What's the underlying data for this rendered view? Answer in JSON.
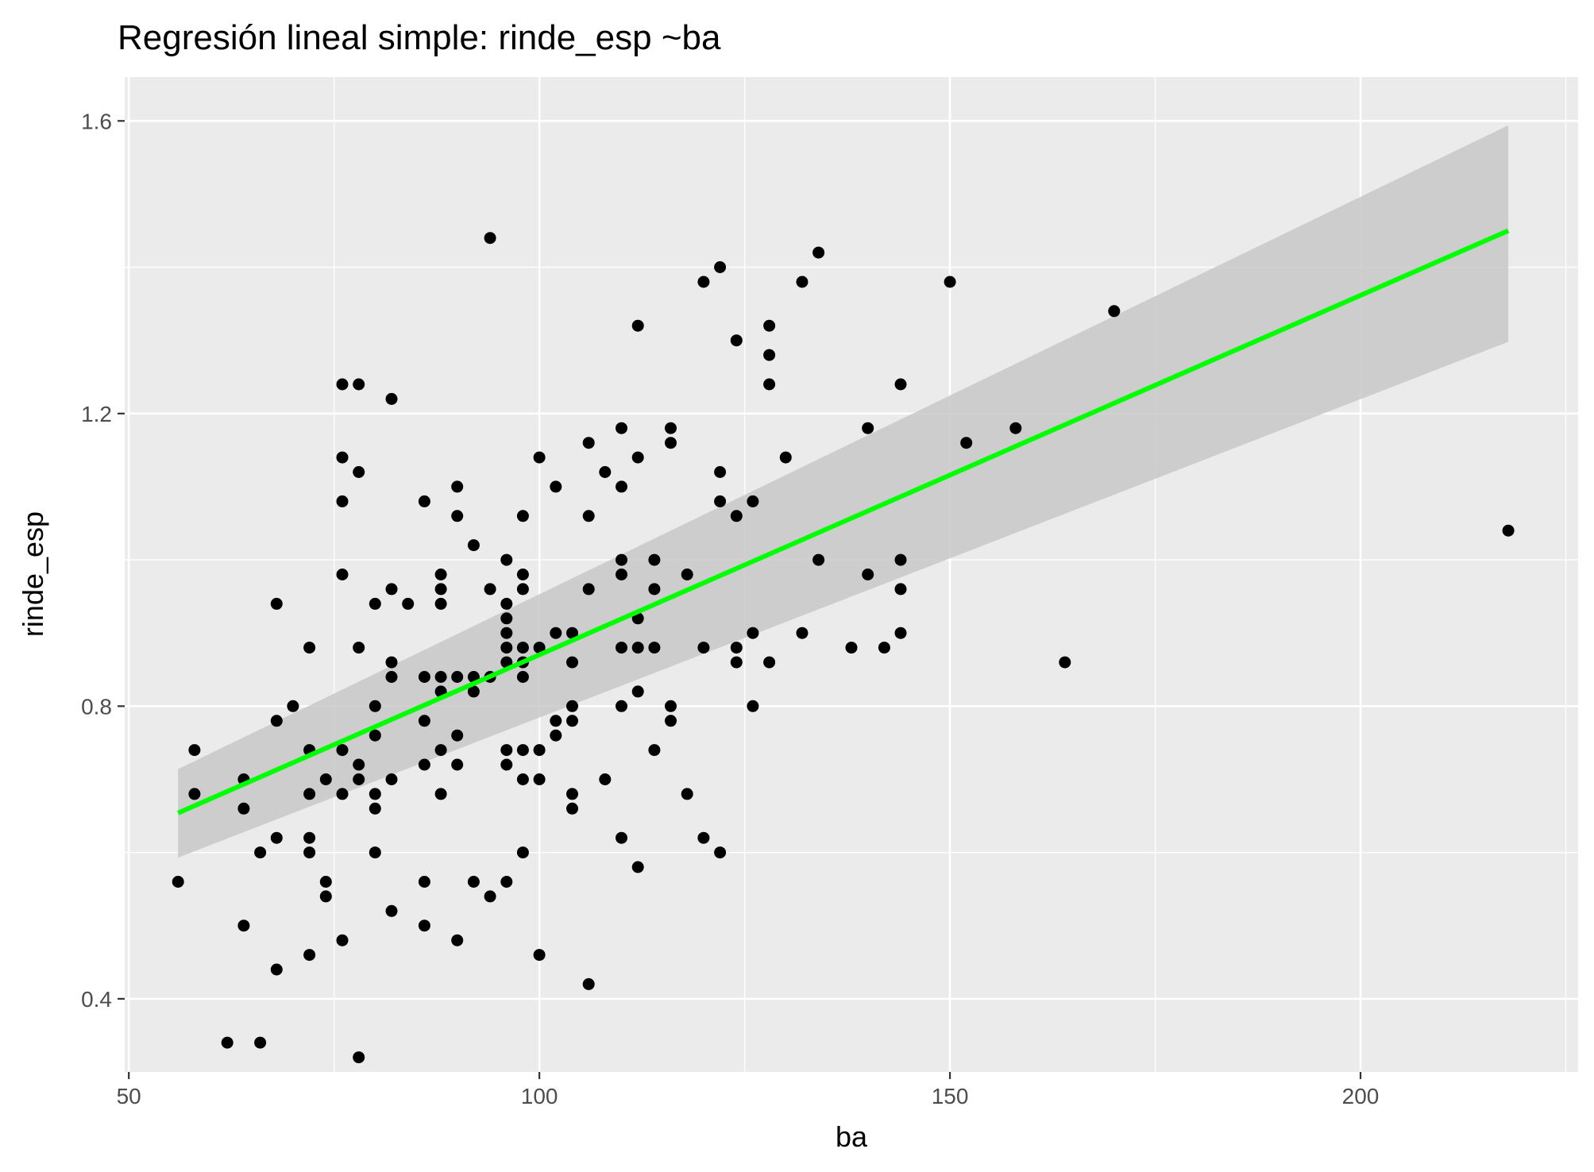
{
  "chart_data": {
    "type": "scatter",
    "title": "Regresión lineal simple:  rinde_esp ~ba",
    "xlabel": "ba",
    "ylabel": "rinde_esp",
    "xlim": [
      49.5,
      226.5
    ],
    "ylim": [
      0.3,
      1.66
    ],
    "x_ticks": [
      50,
      100,
      150,
      200
    ],
    "y_ticks": [
      0.4,
      0.8,
      1.2,
      1.6
    ],
    "x_tick_labels": [
      "50",
      "100",
      "150",
      "200"
    ],
    "y_tick_labels": [
      "0.4",
      "0.8",
      "1.2",
      "1.6"
    ],
    "grid": true,
    "colors": {
      "panel": "#ebebeb",
      "grid": "#ffffff",
      "points": "#000000",
      "fit_line": "#00ff00",
      "confidence_band": "#c8c8c8"
    },
    "regression": {
      "x_range": [
        56,
        218
      ],
      "fit": [
        0.654,
        1.45
      ],
      "ci_lower": [
        0.593,
        1.298
      ],
      "ci_upper": [
        0.714,
        1.594
      ]
    },
    "points": [
      [
        56,
        0.56
      ],
      [
        58,
        0.74
      ],
      [
        58,
        0.68
      ],
      [
        62,
        0.34
      ],
      [
        64,
        0.7
      ],
      [
        64,
        0.66
      ],
      [
        64,
        0.5
      ],
      [
        66,
        0.34
      ],
      [
        66,
        0.6
      ],
      [
        68,
        0.94
      ],
      [
        68,
        0.78
      ],
      [
        68,
        0.62
      ],
      [
        68,
        0.44
      ],
      [
        70,
        0.8
      ],
      [
        72,
        0.88
      ],
      [
        72,
        0.74
      ],
      [
        72,
        0.68
      ],
      [
        72,
        0.62
      ],
      [
        72,
        0.6
      ],
      [
        72,
        0.46
      ],
      [
        74,
        0.7
      ],
      [
        74,
        0.56
      ],
      [
        74,
        0.54
      ],
      [
        76,
        1.24
      ],
      [
        76,
        1.14
      ],
      [
        76,
        1.08
      ],
      [
        76,
        0.98
      ],
      [
        76,
        0.74
      ],
      [
        76,
        0.68
      ],
      [
        76,
        0.48
      ],
      [
        78,
        1.24
      ],
      [
        78,
        1.12
      ],
      [
        78,
        0.88
      ],
      [
        78,
        0.72
      ],
      [
        78,
        0.7
      ],
      [
        78,
        0.32
      ],
      [
        80,
        0.94
      ],
      [
        80,
        0.8
      ],
      [
        80,
        0.76
      ],
      [
        80,
        0.68
      ],
      [
        80,
        0.66
      ],
      [
        80,
        0.6
      ],
      [
        82,
        1.22
      ],
      [
        82,
        0.96
      ],
      [
        82,
        0.86
      ],
      [
        82,
        0.84
      ],
      [
        82,
        0.7
      ],
      [
        82,
        0.52
      ],
      [
        84,
        0.94
      ],
      [
        86,
        1.08
      ],
      [
        86,
        0.84
      ],
      [
        86,
        0.78
      ],
      [
        86,
        0.72
      ],
      [
        86,
        0.56
      ],
      [
        86,
        0.5
      ],
      [
        88,
        0.98
      ],
      [
        88,
        0.96
      ],
      [
        88,
        0.94
      ],
      [
        88,
        0.84
      ],
      [
        88,
        0.82
      ],
      [
        88,
        0.74
      ],
      [
        88,
        0.68
      ],
      [
        90,
        1.1
      ],
      [
        90,
        1.06
      ],
      [
        90,
        0.84
      ],
      [
        90,
        0.76
      ],
      [
        90,
        0.72
      ],
      [
        90,
        0.48
      ],
      [
        92,
        1.02
      ],
      [
        92,
        0.84
      ],
      [
        92,
        0.82
      ],
      [
        92,
        0.56
      ],
      [
        94,
        1.44
      ],
      [
        94,
        0.96
      ],
      [
        94,
        0.84
      ],
      [
        94,
        0.54
      ],
      [
        96,
        1.0
      ],
      [
        96,
        0.94
      ],
      [
        96,
        0.92
      ],
      [
        96,
        0.9
      ],
      [
        96,
        0.88
      ],
      [
        96,
        0.86
      ],
      [
        96,
        0.74
      ],
      [
        96,
        0.72
      ],
      [
        96,
        0.56
      ],
      [
        98,
        1.06
      ],
      [
        98,
        0.98
      ],
      [
        98,
        0.96
      ],
      [
        98,
        0.88
      ],
      [
        98,
        0.86
      ],
      [
        98,
        0.84
      ],
      [
        98,
        0.74
      ],
      [
        98,
        0.7
      ],
      [
        98,
        0.6
      ],
      [
        100,
        1.14
      ],
      [
        100,
        0.88
      ],
      [
        100,
        0.74
      ],
      [
        100,
        0.7
      ],
      [
        100,
        0.46
      ],
      [
        102,
        1.1
      ],
      [
        102,
        0.9
      ],
      [
        102,
        0.78
      ],
      [
        102,
        0.76
      ],
      [
        104,
        0.9
      ],
      [
        104,
        0.86
      ],
      [
        104,
        0.8
      ],
      [
        104,
        0.78
      ],
      [
        104,
        0.68
      ],
      [
        104,
        0.66
      ],
      [
        106,
        1.16
      ],
      [
        106,
        1.06
      ],
      [
        106,
        0.96
      ],
      [
        106,
        0.42
      ],
      [
        108,
        1.12
      ],
      [
        108,
        0.7
      ],
      [
        110,
        1.18
      ],
      [
        110,
        1.1
      ],
      [
        110,
        1.0
      ],
      [
        110,
        0.98
      ],
      [
        110,
        0.88
      ],
      [
        110,
        0.8
      ],
      [
        110,
        0.62
      ],
      [
        112,
        1.32
      ],
      [
        112,
        1.14
      ],
      [
        112,
        0.92
      ],
      [
        112,
        0.88
      ],
      [
        112,
        0.82
      ],
      [
        112,
        0.58
      ],
      [
        114,
        1.0
      ],
      [
        114,
        0.96
      ],
      [
        114,
        0.88
      ],
      [
        114,
        0.74
      ],
      [
        116,
        1.18
      ],
      [
        116,
        1.16
      ],
      [
        116,
        0.8
      ],
      [
        116,
        0.78
      ],
      [
        118,
        0.98
      ],
      [
        118,
        0.68
      ],
      [
        120,
        1.38
      ],
      [
        120,
        0.88
      ],
      [
        120,
        0.62
      ],
      [
        122,
        1.4
      ],
      [
        122,
        1.12
      ],
      [
        122,
        1.08
      ],
      [
        122,
        0.6
      ],
      [
        124,
        1.3
      ],
      [
        124,
        1.06
      ],
      [
        124,
        0.88
      ],
      [
        124,
        0.86
      ],
      [
        126,
        1.08
      ],
      [
        126,
        0.9
      ],
      [
        126,
        0.8
      ],
      [
        128,
        1.32
      ],
      [
        128,
        1.28
      ],
      [
        128,
        1.24
      ],
      [
        128,
        0.86
      ],
      [
        130,
        1.14
      ],
      [
        132,
        1.38
      ],
      [
        132,
        0.9
      ],
      [
        134,
        1.42
      ],
      [
        134,
        1.0
      ],
      [
        138,
        0.88
      ],
      [
        140,
        1.18
      ],
      [
        140,
        0.98
      ],
      [
        142,
        0.88
      ],
      [
        144,
        1.24
      ],
      [
        144,
        1.0
      ],
      [
        144,
        0.96
      ],
      [
        144,
        0.9
      ],
      [
        150,
        1.38
      ],
      [
        152,
        1.16
      ],
      [
        158,
        1.18
      ],
      [
        164,
        0.86
      ],
      [
        170,
        1.34
      ],
      [
        218,
        1.04
      ]
    ]
  }
}
